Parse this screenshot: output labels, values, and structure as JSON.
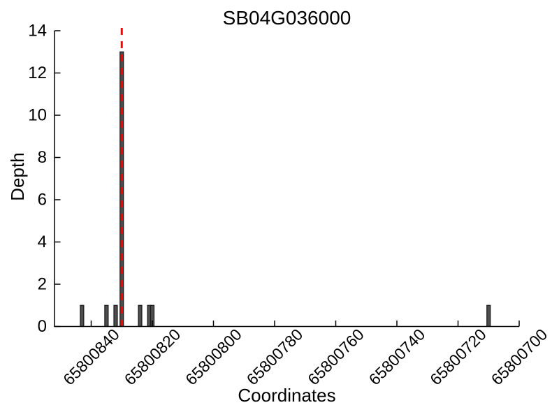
{
  "chart_data": {
    "type": "bar",
    "title": "SB04G036000",
    "xlabel": "Coordinates",
    "ylabel": "Depth",
    "grid": false,
    "legend": "none",
    "x_axis": {
      "reversed": true,
      "lim": [
        65800852,
        65800700
      ],
      "ticks": [
        65800840,
        65800820,
        65800800,
        65800780,
        65800760,
        65800740,
        65800720,
        65800700
      ],
      "tick_rotation_deg": 45,
      "tick_direction": "in"
    },
    "y_axis": {
      "lim": [
        0,
        14
      ],
      "ticks": [
        0,
        2,
        4,
        6,
        8,
        10,
        12,
        14
      ],
      "tick_direction": "in"
    },
    "bars": [
      {
        "coordinate": 65800843,
        "depth": 1
      },
      {
        "coordinate": 65800835,
        "depth": 1
      },
      {
        "coordinate": 65800832,
        "depth": 1
      },
      {
        "coordinate": 65800830,
        "depth": 13
      },
      {
        "coordinate": 65800824,
        "depth": 1
      },
      {
        "coordinate": 65800821,
        "depth": 1
      },
      {
        "coordinate": 65800820,
        "depth": 1
      },
      {
        "coordinate": 65800710,
        "depth": 1
      }
    ],
    "marker_line": {
      "coordinate": 65800830,
      "style": "dashed",
      "color": "#ff0000"
    },
    "colors": {
      "bar_fill": "#4d4d4d",
      "bar_edge": "#1a1a1a",
      "axis": "#000000",
      "text": "#000000",
      "background": "#ffffff"
    }
  }
}
